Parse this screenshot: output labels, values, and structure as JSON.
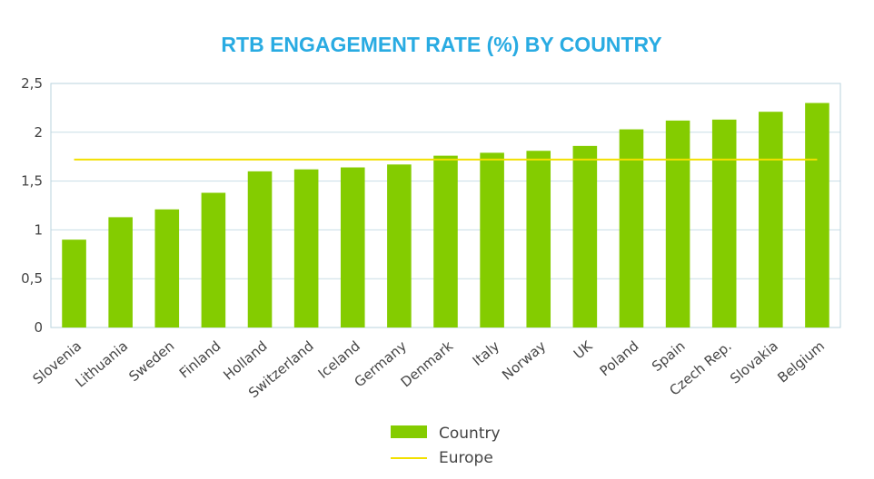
{
  "chart_data": {
    "type": "bar",
    "title": "RTB ENGAGEMENT RATE (%) BY COUNTRY",
    "xlabel": "",
    "ylabel": "",
    "ylim": [
      0,
      2.5
    ],
    "yticks": [
      "0",
      "0,5",
      "1",
      "1,5",
      "2",
      "2,5"
    ],
    "ytick_values": [
      0,
      0.5,
      1,
      1.5,
      2,
      2.5
    ],
    "grid": true,
    "legend_position": "bottom-center",
    "categories": [
      "Slovenia",
      "Lithuania",
      "Sweden",
      "Finland",
      "Holland",
      "Switzerland",
      "Iceland",
      "Germany",
      "Denmark",
      "Italy",
      "Norway",
      "UK",
      "Poland",
      "Spain",
      "Czech Rep.",
      "Slovakia",
      "Belgium"
    ],
    "series": [
      {
        "name": "Country",
        "type": "bar",
        "color": "#84cc00",
        "values": [
          0.9,
          1.13,
          1.21,
          1.38,
          1.6,
          1.62,
          1.64,
          1.67,
          1.76,
          1.79,
          1.81,
          1.86,
          2.03,
          2.12,
          2.13,
          2.21,
          2.3
        ]
      },
      {
        "name": "Europe",
        "type": "line",
        "color": "#f2e000",
        "value": 1.72
      }
    ]
  }
}
